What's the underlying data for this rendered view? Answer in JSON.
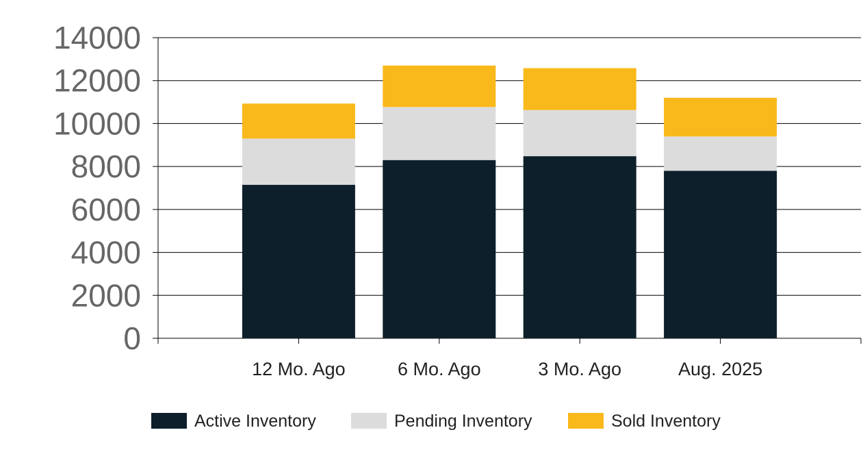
{
  "chart_data": {
    "type": "bar",
    "stacked": true,
    "categories": [
      "12 Mo. Ago",
      "6 Mo. Ago",
      "3 Mo. Ago",
      "Aug. 2025"
    ],
    "series": [
      {
        "name": "Active Inventory",
        "color": "#0d1f2a",
        "values": [
          7150,
          8300,
          8480,
          7800
        ]
      },
      {
        "name": "Pending Inventory",
        "color": "#dcdcdc",
        "values": [
          2150,
          2470,
          2150,
          1600
        ]
      },
      {
        "name": "Sold Inventory",
        "color": "#f9b91a",
        "values": [
          1630,
          1930,
          1950,
          1800
        ]
      }
    ],
    "yticks": [
      "0",
      "2000",
      "4000",
      "6000",
      "8000",
      "10000",
      "12000",
      "14000"
    ],
    "ylim": [
      0,
      14000
    ],
    "grid": true,
    "legend_position": "bottom"
  }
}
